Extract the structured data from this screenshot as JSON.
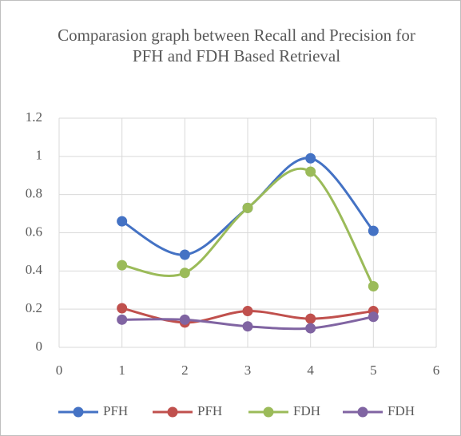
{
  "chart_data": {
    "type": "line",
    "title": "Comparasion graph between Recall and Precision for PFH and FDH Based Retrieval",
    "x": [
      1,
      2,
      3,
      4,
      5
    ],
    "series": [
      {
        "name": "PFH",
        "color": "#4472c4",
        "values": [
          0.66,
          0.485,
          0.73,
          0.99,
          0.61
        ]
      },
      {
        "name": "PFH",
        "color": "#c0504d",
        "values": [
          0.205,
          0.13,
          0.19,
          0.15,
          0.19
        ]
      },
      {
        "name": "FDH",
        "color": "#9bbb59",
        "values": [
          0.43,
          0.39,
          0.73,
          0.92,
          0.32
        ]
      },
      {
        "name": "FDH",
        "color": "#8064a2",
        "values": [
          0.145,
          0.145,
          0.11,
          0.1,
          0.16
        ]
      }
    ],
    "xlim": [
      0,
      6
    ],
    "xticks": [
      0,
      1,
      2,
      3,
      4,
      5,
      6
    ],
    "ylim": [
      0,
      1.2
    ],
    "yticks": [
      0,
      0.2,
      0.4,
      0.6,
      0.8,
      1,
      1.2
    ],
    "grid": true,
    "smooth": true,
    "legend": "bottom"
  }
}
